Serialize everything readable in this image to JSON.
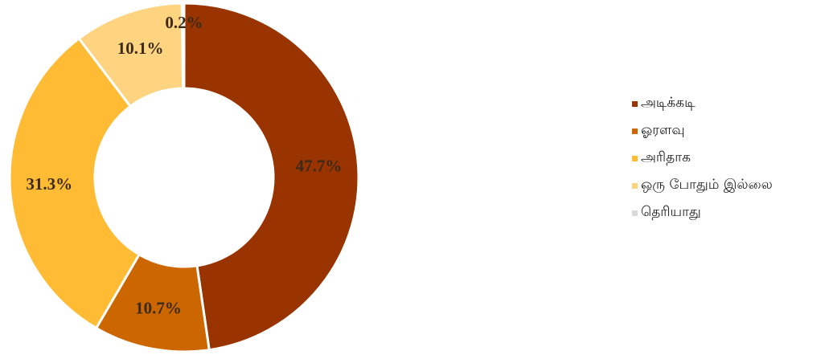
{
  "chart_data": {
    "type": "pie",
    "donut": true,
    "title": "",
    "legend_position": "right",
    "slices": [
      {
        "label": "அடிக்கடி",
        "value": 47.7,
        "display": "47.7%",
        "color": "#993300"
      },
      {
        "label": "ஓரளவு",
        "value": 10.7,
        "display": "10.7%",
        "color": "#CC6600"
      },
      {
        "label": "அரிதாக",
        "value": 31.3,
        "display": "31.3%",
        "color": "#FFBB33"
      },
      {
        "label": "ஒரு போதும் இல்லை",
        "value": 10.1,
        "display": "10.1%",
        "color": "#FFD480"
      },
      {
        "label": "தெரியாது",
        "value": 0.2,
        "display": "0.2%",
        "color": "#D9D9D9"
      }
    ]
  }
}
